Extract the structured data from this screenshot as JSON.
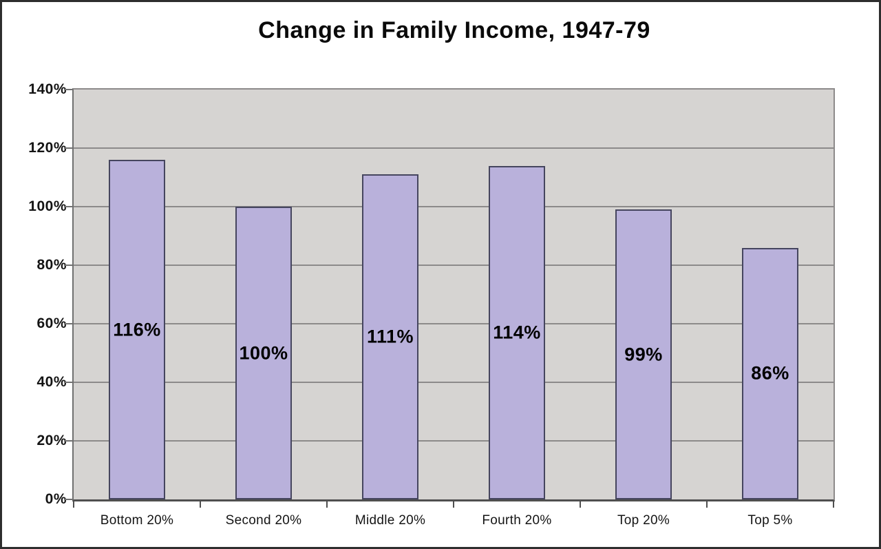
{
  "chart_data": {
    "type": "bar",
    "title": "Change in Family Income, 1947-79",
    "categories": [
      "Bottom 20%",
      "Second 20%",
      "Middle 20%",
      "Fourth 20%",
      "Top 20%",
      "Top 5%"
    ],
    "values": [
      116,
      100,
      111,
      114,
      99,
      86
    ],
    "bar_labels": [
      "116%",
      "100%",
      "111%",
      "114%",
      "99%",
      "86%"
    ],
    "xlabel": "",
    "ylabel": "",
    "ylim": [
      0,
      140
    ],
    "ytick_step": 20,
    "ytick_labels": [
      "0%",
      "20%",
      "40%",
      "60%",
      "80%",
      "100%",
      "120%",
      "140%"
    ],
    "grid": true,
    "legend": "none",
    "colors": {
      "bar_fill": "#b9b1db",
      "bar_border": "#45455e",
      "plot_bg": "#d6d4d2",
      "gridline": "#8c8a8a",
      "axis": "#4f4f4f",
      "tick": "#707070",
      "frame_border": "#2e2e2e",
      "text": "#000000"
    }
  }
}
